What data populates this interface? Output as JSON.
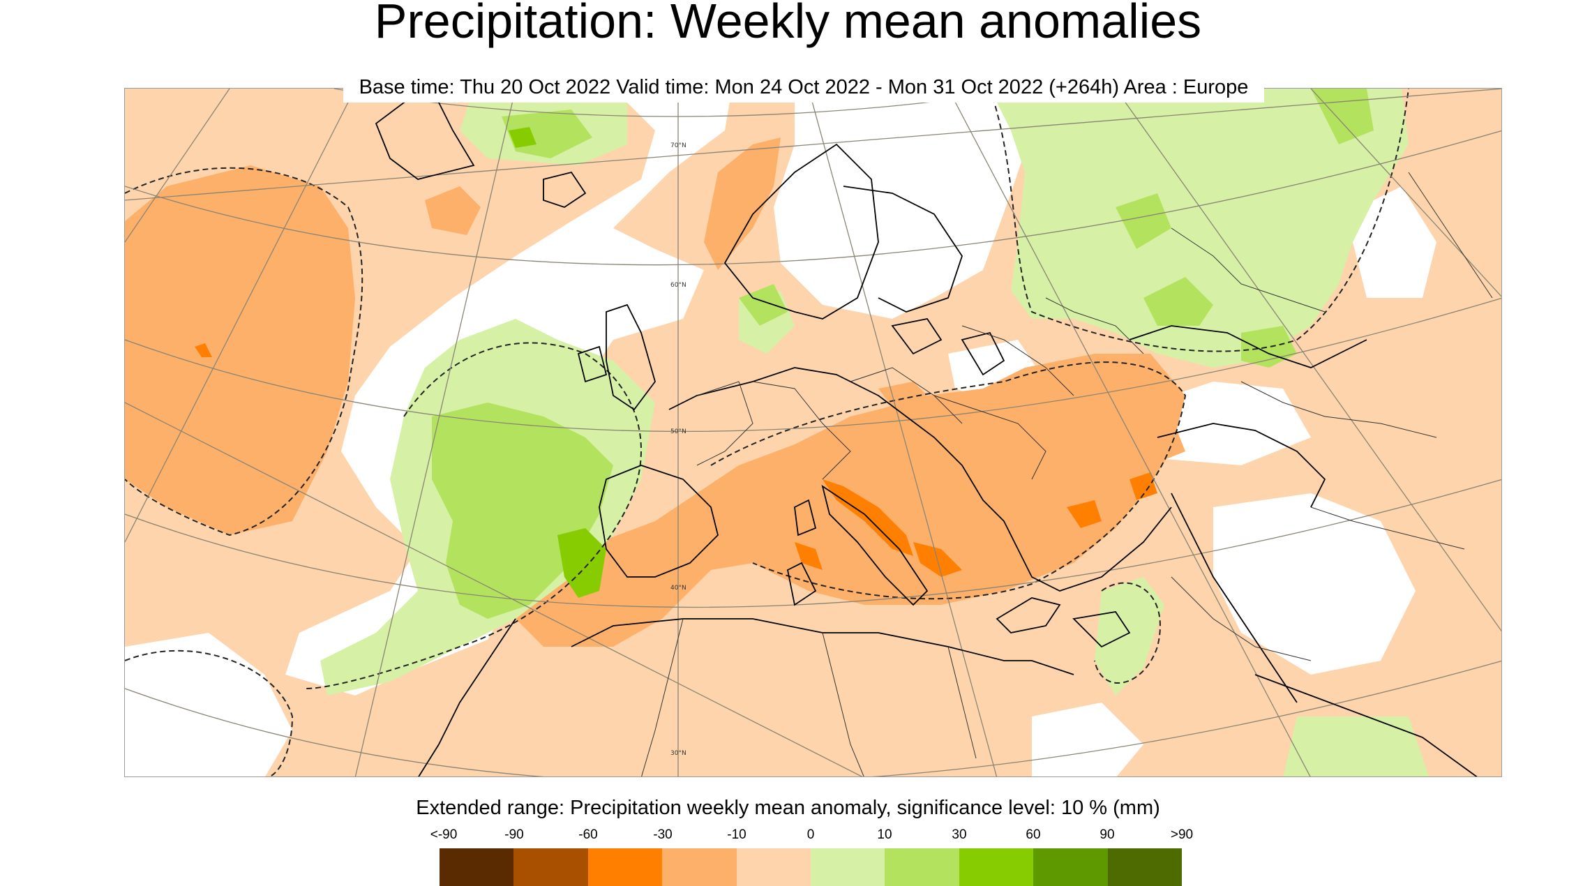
{
  "title": "Precipitation: Weekly mean anomalies",
  "subtitle": "Base time: Thu 20 Oct 2022 Valid time: Mon 24 Oct 2022 - Mon 31 Oct 2022 (+264h) Area : Europe",
  "legend": {
    "title": "Extended range: Precipitation weekly mean anomaly, significance level: 10 % (mm)",
    "ticks": [
      "<-90",
      "-90",
      "-60",
      "-30",
      "-10",
      "0",
      "10",
      "30",
      "60",
      "90",
      ">90"
    ],
    "colors": [
      "#5a2a00",
      "#a85000",
      "#ff8000",
      "#fdb06a",
      "#fdd4ac",
      "#d6f0a6",
      "#b3e35e",
      "#86cc00",
      "#5f9900",
      "#4d6b00"
    ]
  },
  "latitude_labels": [
    "70°N",
    "60°N",
    "50°N",
    "40°N",
    "30°N"
  ]
}
